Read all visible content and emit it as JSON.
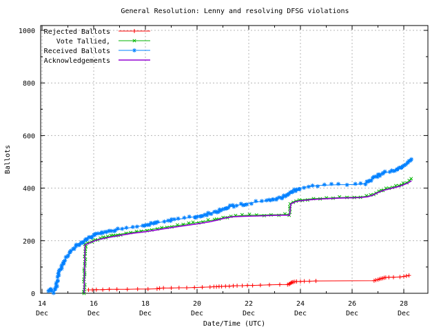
{
  "figure": {
    "background": "#ffffff",
    "border_color": "#000000"
  },
  "chart_data": {
    "type": "line",
    "title": "General Resolution: Lenny and resolving DFSG violations",
    "xlabel": "Date/Time (UTC)",
    "ylabel": "Ballots",
    "x_axis": {
      "unit": "day of December (UTC)",
      "range": [
        13.95,
        28.93
      ],
      "major_ticks": [
        {
          "value": 14,
          "line1": "14",
          "line2": "Dec"
        },
        {
          "value": 16,
          "line1": "16",
          "line2": "Dec"
        },
        {
          "value": 18,
          "line1": "18",
          "line2": "Dec"
        },
        {
          "value": 20,
          "line1": "20",
          "line2": "Dec"
        },
        {
          "value": 22,
          "line1": "22",
          "line2": "Dec"
        },
        {
          "value": 24,
          "line1": "24",
          "line2": "Dec"
        },
        {
          "value": 26,
          "line1": "26",
          "line2": "Dec"
        },
        {
          "value": 28,
          "line1": "28",
          "line2": "Dec"
        }
      ],
      "minor_ticks": [
        15,
        17,
        19,
        21,
        23,
        25,
        27
      ]
    },
    "y_axis": {
      "range": [
        0,
        1018
      ],
      "major_ticks": [
        0,
        200,
        400,
        600,
        800,
        1000
      ],
      "minor_ticks": [
        100,
        300,
        500,
        700,
        900
      ]
    },
    "grid": {
      "show": true,
      "color": "#b4b4b4",
      "dash": "2,3"
    },
    "legend": {
      "position": "top-left-inside"
    },
    "series": [
      {
        "name": "Rejected Ballots",
        "color": "#ff0000",
        "marker": "plus",
        "dense": false,
        "spacing": 0,
        "jitter": 0,
        "points": [
          [
            15.8,
            13
          ],
          [
            15.95,
            13
          ],
          [
            16.1,
            14
          ],
          [
            16.35,
            14
          ],
          [
            16.6,
            15
          ],
          [
            16.9,
            15
          ],
          [
            17.3,
            15
          ],
          [
            17.7,
            16
          ],
          [
            18.1,
            16
          ],
          [
            18.45,
            17
          ],
          [
            18.55,
            19
          ],
          [
            18.7,
            20
          ],
          [
            19.0,
            20
          ],
          [
            19.3,
            21
          ],
          [
            19.6,
            21
          ],
          [
            19.9,
            22
          ],
          [
            20.2,
            23
          ],
          [
            20.5,
            24
          ],
          [
            20.65,
            25
          ],
          [
            20.75,
            25
          ],
          [
            20.85,
            26
          ],
          [
            20.95,
            26
          ],
          [
            21.1,
            27
          ],
          [
            21.25,
            27
          ],
          [
            21.4,
            28
          ],
          [
            21.55,
            29
          ],
          [
            21.75,
            29
          ],
          [
            21.95,
            30
          ],
          [
            22.15,
            30
          ],
          [
            22.45,
            31
          ],
          [
            22.8,
            32
          ],
          [
            23.2,
            33
          ],
          [
            23.5,
            33
          ],
          [
            23.56,
            35
          ],
          [
            23.6,
            37
          ],
          [
            23.64,
            40
          ],
          [
            23.68,
            42
          ],
          [
            23.72,
            43
          ],
          [
            23.78,
            44
          ],
          [
            23.85,
            45
          ],
          [
            24.0,
            45
          ],
          [
            24.15,
            46
          ],
          [
            24.35,
            46
          ],
          [
            24.6,
            47
          ],
          [
            26.85,
            48
          ],
          [
            26.92,
            50
          ],
          [
            27.0,
            52
          ],
          [
            27.06,
            54
          ],
          [
            27.12,
            56
          ],
          [
            27.18,
            57
          ],
          [
            27.24,
            59
          ],
          [
            27.3,
            60
          ],
          [
            27.42,
            61
          ],
          [
            27.6,
            61
          ],
          [
            27.85,
            62
          ],
          [
            28.0,
            64
          ],
          [
            28.1,
            66
          ],
          [
            28.2,
            68
          ]
        ]
      },
      {
        "name": "Vote Tallied,",
        "color": "#00b400",
        "marker": "cross",
        "dense": true,
        "spacing": 3,
        "jitter": 1.3,
        "points": [
          [
            15.62,
            0
          ],
          [
            15.64,
            60
          ],
          [
            15.66,
            130
          ],
          [
            15.68,
            184
          ],
          [
            15.78,
            191
          ],
          [
            15.92,
            197
          ],
          [
            16.08,
            203
          ],
          [
            16.25,
            208
          ],
          [
            16.45,
            213
          ],
          [
            16.65,
            217
          ],
          [
            16.85,
            221
          ],
          [
            17.05,
            225
          ],
          [
            17.25,
            228
          ],
          [
            17.45,
            231
          ],
          [
            17.65,
            234
          ],
          [
            17.85,
            237
          ],
          [
            18.05,
            240
          ],
          [
            18.25,
            243
          ],
          [
            18.45,
            246
          ],
          [
            18.65,
            249
          ],
          [
            18.85,
            252
          ],
          [
            19.05,
            255
          ],
          [
            19.25,
            258
          ],
          [
            19.45,
            261
          ],
          [
            19.65,
            264
          ],
          [
            19.85,
            267
          ],
          [
            20.05,
            270
          ],
          [
            20.25,
            273
          ],
          [
            20.45,
            276
          ],
          [
            20.65,
            279
          ],
          [
            20.85,
            283
          ],
          [
            21.0,
            287
          ],
          [
            21.15,
            290
          ],
          [
            21.3,
            292
          ],
          [
            21.5,
            294
          ],
          [
            21.75,
            296
          ],
          [
            22.0,
            297
          ],
          [
            22.3,
            297
          ],
          [
            22.6,
            298
          ],
          [
            22.85,
            299
          ],
          [
            23.15,
            299
          ],
          [
            23.4,
            300
          ],
          [
            23.58,
            300
          ],
          [
            23.6,
            320
          ],
          [
            23.63,
            342
          ],
          [
            23.72,
            348
          ],
          [
            23.82,
            351
          ],
          [
            23.95,
            354
          ],
          [
            24.1,
            356
          ],
          [
            24.3,
            358
          ],
          [
            24.5,
            360
          ],
          [
            24.75,
            361
          ],
          [
            25.0,
            362
          ],
          [
            25.25,
            363
          ],
          [
            25.5,
            364
          ],
          [
            25.8,
            365
          ],
          [
            26.1,
            366
          ],
          [
            26.35,
            367
          ],
          [
            26.55,
            369
          ],
          [
            26.7,
            372
          ],
          [
            26.82,
            377
          ],
          [
            26.92,
            382
          ],
          [
            27.02,
            386
          ],
          [
            27.12,
            390
          ],
          [
            27.22,
            394
          ],
          [
            27.32,
            397
          ],
          [
            27.45,
            400
          ],
          [
            27.58,
            403
          ],
          [
            27.7,
            406
          ],
          [
            27.8,
            409
          ],
          [
            27.9,
            412
          ],
          [
            28.0,
            416
          ],
          [
            28.1,
            421
          ],
          [
            28.2,
            427
          ],
          [
            28.3,
            435
          ]
        ]
      },
      {
        "name": "Received Ballots",
        "color": "#0080ff",
        "marker": "asterisk",
        "dense": true,
        "spacing": 2,
        "jitter": 1.6,
        "points": [
          [
            14.25,
            8
          ],
          [
            14.28,
            16
          ],
          [
            14.32,
            19
          ],
          [
            14.36,
            13
          ],
          [
            14.4,
            8
          ],
          [
            14.45,
            5
          ],
          [
            14.5,
            12
          ],
          [
            14.55,
            28
          ],
          [
            14.6,
            52
          ],
          [
            14.65,
            72
          ],
          [
            14.7,
            90
          ],
          [
            14.78,
            107
          ],
          [
            14.86,
            122
          ],
          [
            14.94,
            135
          ],
          [
            15.02,
            146
          ],
          [
            15.1,
            157
          ],
          [
            15.2,
            168
          ],
          [
            15.3,
            177
          ],
          [
            15.4,
            185
          ],
          [
            15.5,
            192
          ],
          [
            15.6,
            198
          ],
          [
            15.7,
            204
          ],
          [
            15.8,
            210
          ],
          [
            15.95,
            217
          ],
          [
            16.1,
            223
          ],
          [
            16.3,
            229
          ],
          [
            16.5,
            234
          ],
          [
            16.7,
            238
          ],
          [
            16.9,
            242
          ],
          [
            17.1,
            245
          ],
          [
            17.3,
            248
          ],
          [
            17.5,
            251
          ],
          [
            17.7,
            254
          ],
          [
            17.9,
            257
          ],
          [
            18.1,
            261
          ],
          [
            18.3,
            265
          ],
          [
            18.5,
            269
          ],
          [
            18.7,
            272
          ],
          [
            18.9,
            275
          ],
          [
            19.1,
            279
          ],
          [
            19.3,
            282
          ],
          [
            19.5,
            285
          ],
          [
            19.7,
            288
          ],
          [
            19.9,
            291
          ],
          [
            20.1,
            295
          ],
          [
            20.3,
            299
          ],
          [
            20.5,
            304
          ],
          [
            20.7,
            309
          ],
          [
            20.85,
            315
          ],
          [
            21.0,
            319
          ],
          [
            21.15,
            325
          ],
          [
            21.3,
            330
          ],
          [
            21.5,
            334
          ],
          [
            21.7,
            337
          ],
          [
            21.9,
            341
          ],
          [
            22.1,
            344
          ],
          [
            22.3,
            347
          ],
          [
            22.5,
            350
          ],
          [
            22.7,
            352
          ],
          [
            22.9,
            356
          ],
          [
            23.1,
            360
          ],
          [
            23.25,
            365
          ],
          [
            23.4,
            372
          ],
          [
            23.55,
            381
          ],
          [
            23.7,
            389
          ],
          [
            23.85,
            395
          ],
          [
            24.0,
            400
          ],
          [
            24.15,
            403
          ],
          [
            24.3,
            406
          ],
          [
            24.5,
            408
          ],
          [
            24.7,
            410
          ],
          [
            24.95,
            411
          ],
          [
            25.2,
            412
          ],
          [
            25.5,
            413
          ],
          [
            25.8,
            413
          ],
          [
            26.1,
            414
          ],
          [
            26.35,
            415
          ],
          [
            26.5,
            418
          ],
          [
            26.62,
            424
          ],
          [
            26.74,
            431
          ],
          [
            26.85,
            439
          ],
          [
            26.95,
            446
          ],
          [
            27.05,
            451
          ],
          [
            27.15,
            455
          ],
          [
            27.3,
            459
          ],
          [
            27.45,
            462
          ],
          [
            27.6,
            466
          ],
          [
            27.72,
            470
          ],
          [
            27.82,
            475
          ],
          [
            27.92,
            481
          ],
          [
            28.02,
            488
          ],
          [
            28.12,
            495
          ],
          [
            28.22,
            502
          ],
          [
            28.32,
            509
          ]
        ]
      },
      {
        "name": "Acknowledgements",
        "color": "#9400d3",
        "marker": "none",
        "dense": false,
        "spacing": 0,
        "jitter": 0,
        "points": [
          [
            15.63,
            0
          ],
          [
            15.66,
            183
          ],
          [
            15.8,
            190
          ],
          [
            16.1,
            202
          ],
          [
            16.5,
            211
          ],
          [
            17.0,
            220
          ],
          [
            17.5,
            228
          ],
          [
            18.0,
            234
          ],
          [
            18.5,
            242
          ],
          [
            19.0,
            250
          ],
          [
            19.5,
            257
          ],
          [
            20.0,
            264
          ],
          [
            20.5,
            272
          ],
          [
            20.85,
            280
          ],
          [
            21.1,
            287
          ],
          [
            21.4,
            291
          ],
          [
            21.8,
            293
          ],
          [
            22.3,
            294
          ],
          [
            22.9,
            296
          ],
          [
            23.3,
            297
          ],
          [
            23.58,
            297
          ],
          [
            23.63,
            340
          ],
          [
            23.8,
            348
          ],
          [
            24.0,
            352
          ],
          [
            24.3,
            355
          ],
          [
            24.7,
            358
          ],
          [
            25.1,
            360
          ],
          [
            25.5,
            362
          ],
          [
            25.9,
            363
          ],
          [
            26.3,
            364
          ],
          [
            26.6,
            367
          ],
          [
            26.8,
            373
          ],
          [
            27.0,
            383
          ],
          [
            27.2,
            391
          ],
          [
            27.4,
            396
          ],
          [
            27.6,
            401
          ],
          [
            27.8,
            406
          ],
          [
            28.0,
            413
          ],
          [
            28.15,
            419
          ],
          [
            28.3,
            428
          ]
        ]
      }
    ]
  }
}
